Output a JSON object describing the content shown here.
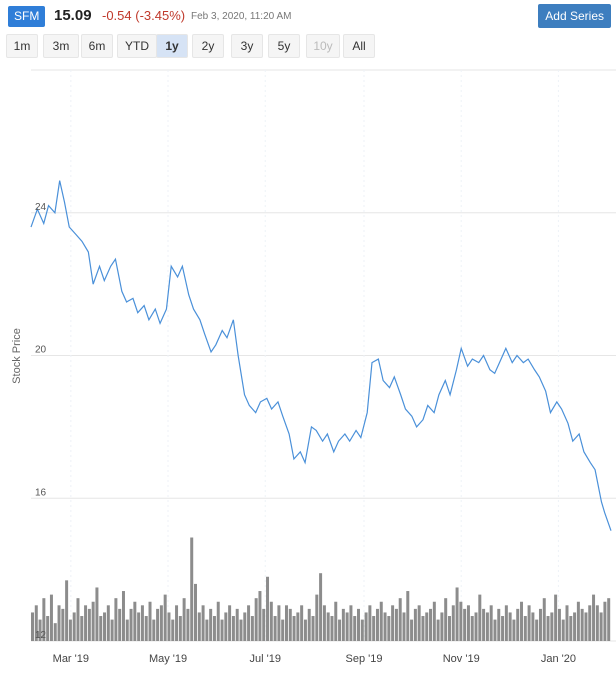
{
  "header": {
    "ticker": "SFM",
    "price": "15.09",
    "change": "-0.54",
    "change_pct": "(-3.45%)",
    "timestamp": "Feb 3, 2020, 11:20 AM",
    "add_series_label": "Add Series"
  },
  "ranges": [
    {
      "label": "1m",
      "state": "normal"
    },
    {
      "label": "3m",
      "state": "normal"
    },
    {
      "label": "6m",
      "state": "normal"
    },
    {
      "label": "YTD",
      "state": "normal"
    },
    {
      "label": "1y",
      "state": "active"
    },
    {
      "label": "2y",
      "state": "normal"
    },
    {
      "label": "3y",
      "state": "normal"
    },
    {
      "label": "5y",
      "state": "normal"
    },
    {
      "label": "10y",
      "state": "disabled"
    },
    {
      "label": "All",
      "state": "normal"
    }
  ],
  "colors": {
    "line": "#4a90d9",
    "volume": "#8c8c8c",
    "grid": "#e6e6e6",
    "accent": "#2f7ed8",
    "negative": "#c0392b"
  },
  "chart_data": {
    "type": "line",
    "ylabel": "Stock Price",
    "ylim": [
      12,
      28
    ],
    "yticks": [
      12,
      16,
      20,
      24
    ],
    "xticks": [
      "Mar '19",
      "May '19",
      "Jul '19",
      "Sep '19",
      "Nov '19",
      "Jan '20"
    ],
    "xtick_dates": [
      "2019-03-01",
      "2019-05-01",
      "2019-07-01",
      "2019-09-01",
      "2019-11-01",
      "2020-01-01"
    ],
    "x_range": [
      "2019-02-04",
      "2020-02-03"
    ],
    "price_series": {
      "name": "SFM",
      "points": [
        [
          "2019-02-04",
          23.6
        ],
        [
          "2019-02-08",
          24.1
        ],
        [
          "2019-02-12",
          23.7
        ],
        [
          "2019-02-15",
          24.2
        ],
        [
          "2019-02-19",
          24.0
        ],
        [
          "2019-02-22",
          24.9
        ],
        [
          "2019-02-25",
          24.3
        ],
        [
          "2019-02-28",
          23.6
        ],
        [
          "2019-03-04",
          23.4
        ],
        [
          "2019-03-08",
          23.2
        ],
        [
          "2019-03-12",
          22.9
        ],
        [
          "2019-03-15",
          22.0
        ],
        [
          "2019-03-19",
          22.5
        ],
        [
          "2019-03-22",
          22.1
        ],
        [
          "2019-03-26",
          22.5
        ],
        [
          "2019-03-29",
          22.7
        ],
        [
          "2019-04-02",
          21.8
        ],
        [
          "2019-04-05",
          21.5
        ],
        [
          "2019-04-09",
          21.6
        ],
        [
          "2019-04-12",
          21.2
        ],
        [
          "2019-04-16",
          21.4
        ],
        [
          "2019-04-19",
          21.0
        ],
        [
          "2019-04-23",
          21.3
        ],
        [
          "2019-04-26",
          20.9
        ],
        [
          "2019-04-30",
          21.3
        ],
        [
          "2019-05-03",
          22.5
        ],
        [
          "2019-05-07",
          22.2
        ],
        [
          "2019-05-10",
          22.5
        ],
        [
          "2019-05-14",
          21.7
        ],
        [
          "2019-05-17",
          21.3
        ],
        [
          "2019-05-21",
          21.0
        ],
        [
          "2019-05-24",
          20.6
        ],
        [
          "2019-05-28",
          20.1
        ],
        [
          "2019-05-31",
          20.3
        ],
        [
          "2019-06-04",
          20.7
        ],
        [
          "2019-06-07",
          20.5
        ],
        [
          "2019-06-11",
          21.0
        ],
        [
          "2019-06-14",
          20.0
        ],
        [
          "2019-06-18",
          18.9
        ],
        [
          "2019-06-21",
          18.6
        ],
        [
          "2019-06-25",
          18.4
        ],
        [
          "2019-06-28",
          18.7
        ],
        [
          "2019-07-02",
          18.8
        ],
        [
          "2019-07-05",
          18.5
        ],
        [
          "2019-07-09",
          18.7
        ],
        [
          "2019-07-12",
          18.3
        ],
        [
          "2019-07-16",
          17.8
        ],
        [
          "2019-07-19",
          17.1
        ],
        [
          "2019-07-23",
          17.3
        ],
        [
          "2019-07-26",
          17.0
        ],
        [
          "2019-07-30",
          18.0
        ],
        [
          "2019-08-02",
          17.9
        ],
        [
          "2019-08-06",
          17.6
        ],
        [
          "2019-08-09",
          17.8
        ],
        [
          "2019-08-13",
          17.3
        ],
        [
          "2019-08-16",
          17.6
        ],
        [
          "2019-08-20",
          17.8
        ],
        [
          "2019-08-23",
          17.6
        ],
        [
          "2019-08-27",
          17.9
        ],
        [
          "2019-08-30",
          17.7
        ],
        [
          "2019-09-03",
          18.4
        ],
        [
          "2019-09-06",
          19.8
        ],
        [
          "2019-09-10",
          19.9
        ],
        [
          "2019-09-13",
          19.3
        ],
        [
          "2019-09-17",
          19.1
        ],
        [
          "2019-09-20",
          19.4
        ],
        [
          "2019-09-24",
          18.9
        ],
        [
          "2019-09-27",
          18.5
        ],
        [
          "2019-10-01",
          18.3
        ],
        [
          "2019-10-04",
          18.0
        ],
        [
          "2019-10-08",
          18.2
        ],
        [
          "2019-10-11",
          18.6
        ],
        [
          "2019-10-15",
          18.4
        ],
        [
          "2019-10-18",
          18.9
        ],
        [
          "2019-10-22",
          19.3
        ],
        [
          "2019-10-25",
          18.9
        ],
        [
          "2019-10-29",
          19.6
        ],
        [
          "2019-11-01",
          20.2
        ],
        [
          "2019-11-05",
          19.7
        ],
        [
          "2019-11-08",
          19.9
        ],
        [
          "2019-11-12",
          19.8
        ],
        [
          "2019-11-15",
          20.0
        ],
        [
          "2019-11-19",
          19.6
        ],
        [
          "2019-11-22",
          19.5
        ],
        [
          "2019-11-26",
          19.9
        ],
        [
          "2019-11-29",
          20.2
        ],
        [
          "2019-12-03",
          19.8
        ],
        [
          "2019-12-06",
          20.0
        ],
        [
          "2019-12-10",
          19.8
        ],
        [
          "2019-12-13",
          19.9
        ],
        [
          "2019-12-17",
          19.6
        ],
        [
          "2019-12-20",
          19.4
        ],
        [
          "2019-12-24",
          19.0
        ],
        [
          "2019-12-27",
          18.4
        ],
        [
          "2019-12-31",
          18.7
        ],
        [
          "2020-01-03",
          18.5
        ],
        [
          "2020-01-07",
          18.1
        ],
        [
          "2020-01-10",
          17.6
        ],
        [
          "2020-01-14",
          17.8
        ],
        [
          "2020-01-17",
          17.3
        ],
        [
          "2020-01-21",
          17.0
        ],
        [
          "2020-01-24",
          16.8
        ],
        [
          "2020-01-28",
          15.9
        ],
        [
          "2020-01-30",
          15.6
        ],
        [
          "2020-02-03",
          15.09
        ]
      ]
    },
    "volume_series": {
      "base": 12,
      "values": [
        12.8,
        13.0,
        12.6,
        13.2,
        12.7,
        13.3,
        12.5,
        13.0,
        12.9,
        13.7,
        12.6,
        12.8,
        13.2,
        12.7,
        13.0,
        12.9,
        13.1,
        13.5,
        12.7,
        12.8,
        13.0,
        12.6,
        13.2,
        12.9,
        13.4,
        12.6,
        12.9,
        13.1,
        12.8,
        13.0,
        12.7,
        13.1,
        12.6,
        12.9,
        13.0,
        13.3,
        12.8,
        12.6,
        13.0,
        12.7,
        13.2,
        12.9,
        14.9,
        13.6,
        12.8,
        13.0,
        12.6,
        12.9,
        12.7,
        13.1,
        12.6,
        12.8,
        13.0,
        12.7,
        12.9,
        12.6,
        12.8,
        13.0,
        12.7,
        13.2,
        13.4,
        12.9,
        13.8,
        13.1,
        12.7,
        13.0,
        12.6,
        13.0,
        12.9,
        12.7,
        12.8,
        13.0,
        12.6,
        12.9,
        12.7,
        13.3,
        13.9,
        13.0,
        12.8,
        12.7,
        13.1,
        12.6,
        12.9,
        12.8,
        13.0,
        12.7,
        12.9,
        12.6,
        12.8,
        13.0,
        12.7,
        12.9,
        13.1,
        12.8,
        12.7,
        13.0,
        12.9,
        13.2,
        12.8,
        13.4,
        12.6,
        12.9,
        13.0,
        12.7,
        12.8,
        12.9,
        13.1,
        12.6,
        12.8,
        13.2,
        12.7,
        13.0,
        13.5,
        13.1,
        12.9,
        13.0,
        12.7,
        12.8,
        13.3,
        12.9,
        12.8,
        13.0,
        12.6,
        12.9,
        12.7,
        13.0,
        12.8,
        12.6,
        12.9,
        13.1,
        12.7,
        13.0,
        12.8,
        12.6,
        12.9,
        13.2,
        12.7,
        12.8,
        13.3,
        12.9,
        12.6,
        13.0,
        12.7,
        12.8,
        13.1,
        12.9,
        12.8,
        13.0,
        13.3,
        13.0,
        12.8,
        13.1,
        13.2
      ]
    }
  }
}
